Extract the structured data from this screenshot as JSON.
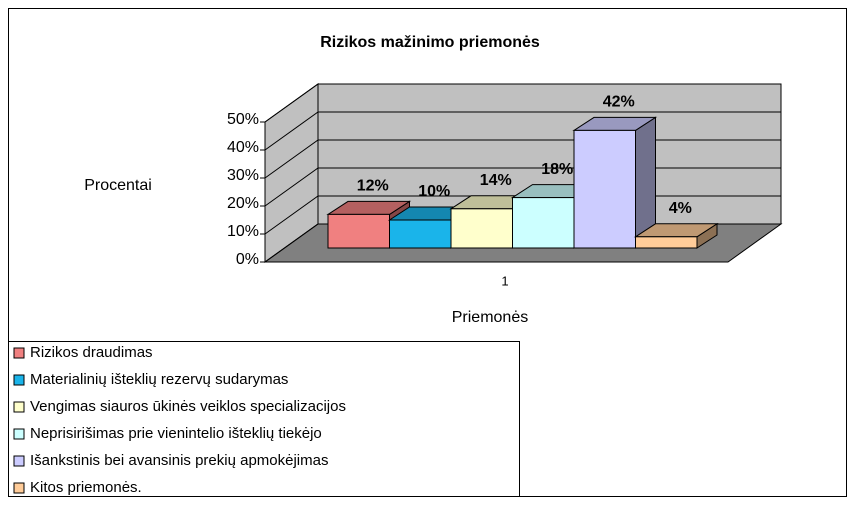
{
  "chart_data": {
    "type": "bar3d",
    "title": "Rizikos mažinimo priemonės",
    "categories": [
      "1"
    ],
    "x_label": "Priemonės",
    "y_label": "Procentai",
    "ylim": [
      0,
      50
    ],
    "yticks": [
      {
        "value": 0,
        "label": "0%"
      },
      {
        "value": 10,
        "label": "10%"
      },
      {
        "value": 20,
        "label": "20%"
      },
      {
        "value": 30,
        "label": "30%"
      },
      {
        "value": 40,
        "label": "40%"
      },
      {
        "value": 50,
        "label": "50%"
      }
    ],
    "grid": true,
    "legend": "bottom-left",
    "series": [
      {
        "name": "Rizikos draudimas",
        "color": "#f08080",
        "values": [
          12
        ],
        "value_labels": [
          "12%"
        ]
      },
      {
        "name": "Materialinių išteklių rezervų sudarymas",
        "color": "#1ab4ea",
        "values": [
          10
        ],
        "value_labels": [
          "10%"
        ]
      },
      {
        "name": "Vengimas siauros ūkinės veiklos specializacijos",
        "color": "#ffffcc",
        "values": [
          14
        ],
        "value_labels": [
          "14%"
        ]
      },
      {
        "name": "Neprisirišimas prie vienintelio išteklių tiekėjo",
        "color": "#ccffff",
        "values": [
          18
        ],
        "value_labels": [
          "18%"
        ]
      },
      {
        "name": "Išankstinis bei avansinis prekių apmokėjimas",
        "color": "#ccccff",
        "values": [
          42
        ],
        "value_labels": [
          "42%"
        ]
      },
      {
        "name": "Kitos priemonės.",
        "color": "#ffcc99",
        "values": [
          4
        ],
        "value_labels": [
          "4%"
        ]
      }
    ]
  }
}
